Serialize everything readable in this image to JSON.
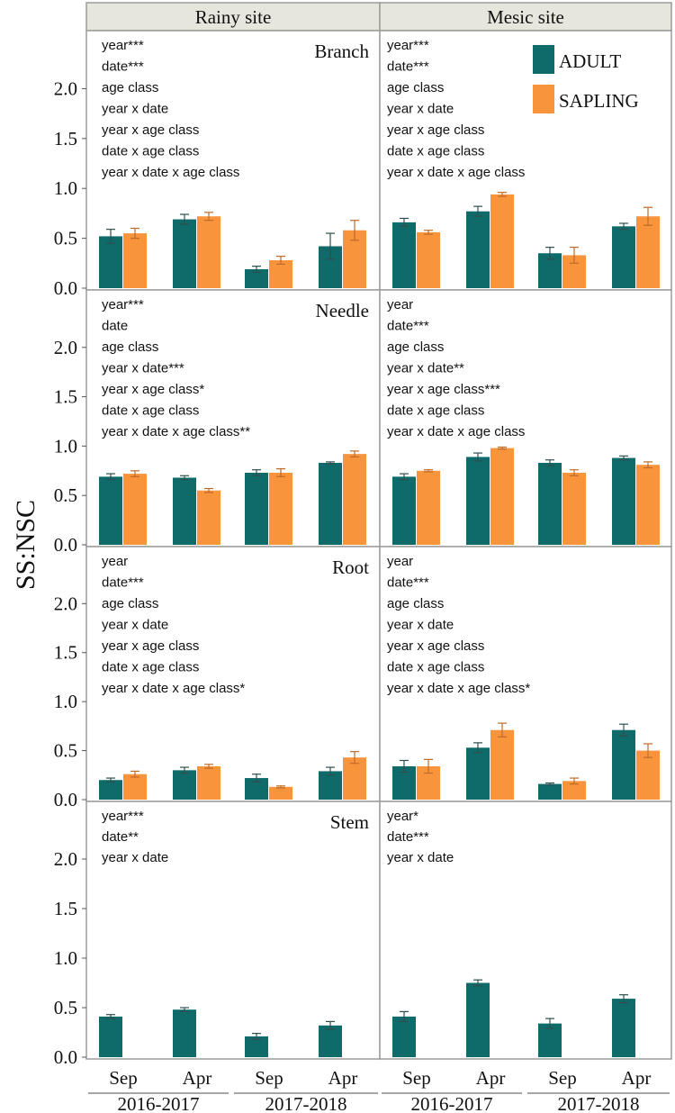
{
  "chart_data": {
    "type": "bar",
    "ylabel": "SS:NSC",
    "ylim": [
      0,
      2.5
    ],
    "yticks": [
      "0.0",
      "0.5",
      "1.0",
      "1.5",
      "2.0"
    ],
    "columns": [
      "Rainy site",
      "Mesic site"
    ],
    "categories": [
      "Sep",
      "Apr",
      "Sep",
      "Apr"
    ],
    "year_groups": [
      "2016-2017",
      "2017-2018"
    ],
    "legend": [
      {
        "name": "ADULT",
        "color": "#0f6a6a"
      },
      {
        "name": "SAPLING",
        "color": "#f7943c"
      }
    ],
    "panels": [
      {
        "row": 0,
        "col": 0,
        "tissue": "Branch",
        "stats": [
          "year***",
          "date***",
          "age class",
          "year x date",
          "year x age class",
          "date x age class",
          "year x date x age class"
        ],
        "series": [
          {
            "name": "ADULT",
            "values": [
              0.52,
              0.69,
              0.19,
              0.42
            ],
            "errors": [
              0.07,
              0.05,
              0.03,
              0.13
            ]
          },
          {
            "name": "SAPLING",
            "values": [
              0.55,
              0.72,
              0.28,
              0.58
            ],
            "errors": [
              0.05,
              0.04,
              0.04,
              0.1
            ]
          }
        ]
      },
      {
        "row": 0,
        "col": 1,
        "tissue": "",
        "stats": [
          "year***",
          "date***",
          "age class",
          "year x date",
          "year x age class",
          "date x age class",
          "year x date x age class"
        ],
        "series": [
          {
            "name": "ADULT",
            "values": [
              0.66,
              0.77,
              0.35,
              0.62
            ],
            "errors": [
              0.04,
              0.05,
              0.06,
              0.03
            ]
          },
          {
            "name": "SAPLING",
            "values": [
              0.56,
              0.94,
              0.33,
              0.72
            ],
            "errors": [
              0.02,
              0.02,
              0.08,
              0.09
            ]
          }
        ]
      },
      {
        "row": 1,
        "col": 0,
        "tissue": "Needle",
        "stats": [
          "year***",
          "date",
          "age class",
          "year x date***",
          "year x age class*",
          "date x age class",
          "year x date x age class**"
        ],
        "series": [
          {
            "name": "ADULT",
            "values": [
              0.69,
              0.68,
              0.73,
              0.83
            ],
            "errors": [
              0.03,
              0.02,
              0.03,
              0.01
            ]
          },
          {
            "name": "SAPLING",
            "values": [
              0.72,
              0.55,
              0.73,
              0.92
            ],
            "errors": [
              0.03,
              0.02,
              0.04,
              0.03
            ]
          }
        ]
      },
      {
        "row": 1,
        "col": 1,
        "tissue": "",
        "stats": [
          "year",
          "date***",
          "age class",
          "year x date**",
          "year x age class***",
          "date x age class",
          "year x date x age class"
        ],
        "series": [
          {
            "name": "ADULT",
            "values": [
              0.69,
              0.89,
              0.83,
              0.88
            ],
            "errors": [
              0.03,
              0.04,
              0.03,
              0.02
            ]
          },
          {
            "name": "SAPLING",
            "values": [
              0.75,
              0.98,
              0.73,
              0.81
            ],
            "errors": [
              0.01,
              0.01,
              0.03,
              0.03
            ]
          }
        ]
      },
      {
        "row": 2,
        "col": 0,
        "tissue": "Root",
        "stats": [
          "year",
          "date***",
          "age class",
          "year x date",
          "year x age class",
          "date x age class",
          "year x date x age class*"
        ],
        "series": [
          {
            "name": "ADULT",
            "values": [
              0.2,
              0.3,
              0.22,
              0.29
            ],
            "errors": [
              0.02,
              0.03,
              0.04,
              0.04
            ]
          },
          {
            "name": "SAPLING",
            "values": [
              0.26,
              0.34,
              0.13,
              0.43
            ],
            "errors": [
              0.03,
              0.02,
              0.01,
              0.06
            ]
          }
        ]
      },
      {
        "row": 2,
        "col": 1,
        "tissue": "",
        "stats": [
          "year",
          "date***",
          "age class",
          "year x date",
          "year x age class",
          "date x age class",
          "year x date x age class*"
        ],
        "series": [
          {
            "name": "ADULT",
            "values": [
              0.34,
              0.53,
              0.16,
              0.71
            ],
            "errors": [
              0.06,
              0.05,
              0.01,
              0.06
            ]
          },
          {
            "name": "SAPLING",
            "values": [
              0.34,
              0.71,
              0.19,
              0.5
            ],
            "errors": [
              0.07,
              0.07,
              0.03,
              0.07
            ]
          }
        ]
      },
      {
        "row": 3,
        "col": 0,
        "tissue": "Stem",
        "stats": [
          "year***",
          "date**",
          "year x date"
        ],
        "series": [
          {
            "name": "ADULT",
            "values": [
              0.41,
              0.48,
              0.21,
              0.32
            ],
            "errors": [
              0.02,
              0.02,
              0.03,
              0.04
            ]
          }
        ]
      },
      {
        "row": 3,
        "col": 1,
        "tissue": "",
        "stats": [
          "year*",
          "date***",
          "year x date"
        ],
        "series": [
          {
            "name": "ADULT",
            "values": [
              0.41,
              0.75,
              0.34,
              0.59
            ],
            "errors": [
              0.05,
              0.03,
              0.05,
              0.04
            ]
          }
        ]
      }
    ]
  }
}
